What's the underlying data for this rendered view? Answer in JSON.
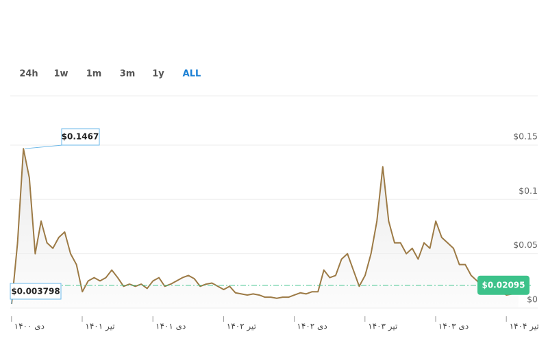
{
  "range_tabs": [
    "24h",
    "1w",
    "1m",
    "3m",
    "1y",
    "ALL"
  ],
  "active_tab": 5,
  "chart_data": {
    "type": "area",
    "categories": [
      null,
      null,
      null,
      "دی ۱۴۰۰",
      null,
      null,
      null,
      null,
      null,
      null,
      null,
      null,
      null,
      null,
      null,
      "تیر ۱۴۰۱",
      null,
      null,
      null,
      null,
      null,
      null,
      null,
      null,
      null,
      null,
      null,
      "دی ۱۴۰۱",
      null,
      null,
      null,
      null,
      null,
      null,
      null,
      null,
      null,
      null,
      null,
      "تیر ۱۴۰۲",
      null,
      null,
      null,
      null,
      null,
      null,
      null,
      null,
      null,
      null,
      null,
      "دی ۱۴۰۲",
      null,
      null,
      null,
      null,
      null,
      null,
      null,
      null,
      null,
      null,
      null,
      "تیر ۱۴۰۳",
      null,
      null,
      null,
      null,
      null,
      null,
      null,
      null,
      null,
      null,
      null,
      "دی ۱۴۰۳",
      null,
      null,
      null,
      null,
      null,
      null,
      null,
      null,
      null,
      null,
      null,
      "تیر ۱۴۰۴"
    ],
    "series": [
      {
        "color": "#9c7a45",
        "values": [
          0.003798,
          0.06,
          0.1467,
          0.12,
          0.05,
          0.08,
          0.06,
          0.055,
          0.065,
          0.07,
          0.05,
          0.04,
          0.015,
          0.025,
          0.028,
          0.025,
          0.028,
          0.035,
          0.028,
          0.02,
          0.022,
          0.02,
          0.022,
          0.018,
          0.025,
          0.028,
          0.02,
          0.022,
          0.025,
          0.028,
          0.03,
          0.027,
          0.02,
          0.022,
          0.023,
          0.02,
          0.017,
          0.02,
          0.014,
          0.013,
          0.012,
          0.013,
          0.012,
          0.01,
          0.01,
          0.009,
          0.01,
          0.01,
          0.012,
          0.014,
          0.013,
          0.015,
          0.015,
          0.035,
          0.028,
          0.03,
          0.045,
          0.05,
          0.035,
          0.02,
          0.03,
          0.05,
          0.08,
          0.13,
          0.08,
          0.06,
          0.06,
          0.05,
          0.055,
          0.045,
          0.06,
          0.055,
          0.08,
          0.065,
          0.06,
          0.055,
          0.04,
          0.04,
          0.03,
          0.025,
          0.018,
          0.02,
          0.017,
          0.015,
          0.012,
          0.013,
          0.02095,
          null
        ]
      }
    ],
    "ylim": [
      0,
      0.2
    ],
    "yticks": [
      {
        "value": 0.15,
        "label": "$0.15"
      },
      {
        "value": 0.1,
        "label": "$0.1"
      },
      {
        "value": 0.05,
        "label": "$0.05"
      },
      {
        "value": 0,
        "label": "$0"
      }
    ],
    "grid": true,
    "high": {
      "value": 0.1467,
      "label": "$0.1467"
    },
    "low": {
      "value": 0.003798,
      "label": "$0.003798"
    },
    "current": {
      "value": 0.02095,
      "label": "$0.02095",
      "color": "#3cc28a"
    }
  }
}
